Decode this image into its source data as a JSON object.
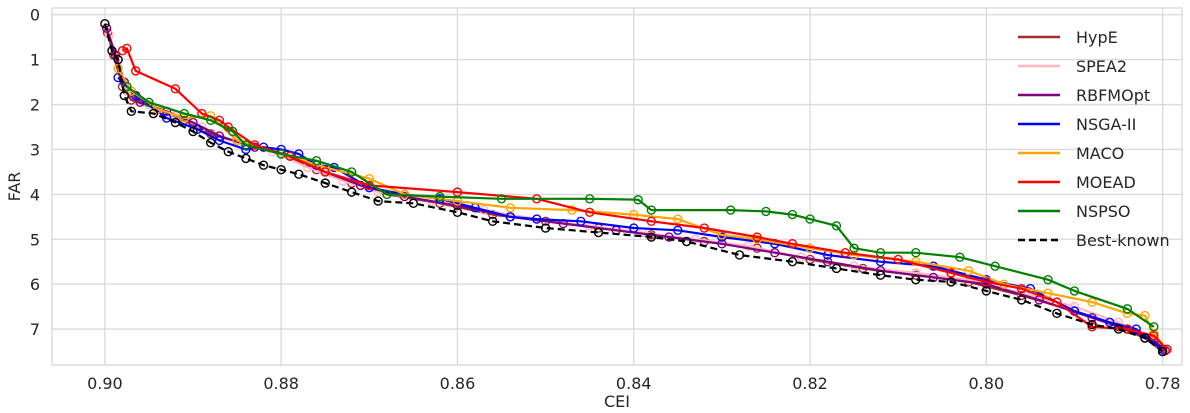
{
  "chart_data": {
    "type": "line",
    "xlabel": "CEI",
    "ylabel": "FAR",
    "xlim": [
      0.906,
      0.7778
    ],
    "ylim": [
      7.8,
      -0.15
    ],
    "x_inverted": true,
    "y_inverted": true,
    "xticks": [
      0.9,
      0.88,
      0.86,
      0.84,
      0.82,
      0.8,
      0.78
    ],
    "xtick_labels": [
      "0.90",
      "0.88",
      "0.86",
      "0.84",
      "0.82",
      "0.80",
      "0.78"
    ],
    "yticks": [
      0,
      1,
      2,
      3,
      4,
      5,
      6,
      7
    ],
    "ytick_labels": [
      "0",
      "1",
      "2",
      "3",
      "4",
      "5",
      "6",
      "7"
    ],
    "grid": true,
    "legend_position": "top-right",
    "series": [
      {
        "name": "HypE",
        "color": "#a52a2a",
        "style": "solid",
        "markers": true,
        "points": [
          [
            0.8997,
            0.4
          ],
          [
            0.899,
            0.9
          ],
          [
            0.898,
            1.6
          ],
          [
            0.897,
            1.9
          ],
          [
            0.894,
            2.1
          ],
          [
            0.891,
            2.35
          ],
          [
            0.888,
            2.65
          ],
          [
            0.884,
            2.9
          ],
          [
            0.88,
            3.1
          ],
          [
            0.876,
            3.45
          ],
          [
            0.872,
            3.75
          ],
          [
            0.868,
            4.0
          ],
          [
            0.862,
            4.2
          ],
          [
            0.856,
            4.45
          ],
          [
            0.85,
            4.6
          ],
          [
            0.844,
            4.75
          ],
          [
            0.838,
            4.9
          ],
          [
            0.832,
            5.05
          ],
          [
            0.826,
            5.2
          ],
          [
            0.82,
            5.45
          ],
          [
            0.814,
            5.65
          ],
          [
            0.808,
            5.8
          ],
          [
            0.802,
            5.95
          ],
          [
            0.796,
            6.25
          ],
          [
            0.79,
            6.6
          ],
          [
            0.785,
            6.95
          ],
          [
            0.782,
            7.2
          ],
          [
            0.78,
            7.5
          ]
        ]
      },
      {
        "name": "SPEA2",
        "color": "#ffb6c1",
        "style": "solid",
        "markers": true,
        "points": [
          [
            0.8995,
            0.45
          ],
          [
            0.8985,
            1.0
          ],
          [
            0.8975,
            1.7
          ],
          [
            0.895,
            2.0
          ],
          [
            0.892,
            2.25
          ],
          [
            0.889,
            2.5
          ],
          [
            0.885,
            2.85
          ],
          [
            0.881,
            3.05
          ],
          [
            0.877,
            3.4
          ],
          [
            0.873,
            3.7
          ],
          [
            0.869,
            3.95
          ],
          [
            0.863,
            4.15
          ],
          [
            0.857,
            4.35
          ],
          [
            0.851,
            4.55
          ],
          [
            0.845,
            4.7
          ],
          [
            0.839,
            4.85
          ],
          [
            0.833,
            5.0
          ],
          [
            0.827,
            5.15
          ],
          [
            0.821,
            5.4
          ],
          [
            0.815,
            5.6
          ],
          [
            0.808,
            5.75
          ],
          [
            0.802,
            5.9
          ],
          [
            0.796,
            6.2
          ],
          [
            0.79,
            6.5
          ],
          [
            0.785,
            6.85
          ],
          [
            0.781,
            7.2
          ],
          [
            0.7795,
            7.45
          ]
        ]
      },
      {
        "name": "RBFMOpt",
        "color": "#800080",
        "style": "solid",
        "markers": true,
        "points": [
          [
            0.8998,
            0.3
          ],
          [
            0.8988,
            0.9
          ],
          [
            0.8978,
            1.5
          ],
          [
            0.896,
            1.95
          ],
          [
            0.893,
            2.15
          ],
          [
            0.89,
            2.4
          ],
          [
            0.887,
            2.7
          ],
          [
            0.883,
            2.95
          ],
          [
            0.879,
            3.15
          ],
          [
            0.875,
            3.5
          ],
          [
            0.871,
            3.8
          ],
          [
            0.866,
            4.05
          ],
          [
            0.86,
            4.25
          ],
          [
            0.854,
            4.5
          ],
          [
            0.848,
            4.65
          ],
          [
            0.842,
            4.8
          ],
          [
            0.836,
            4.95
          ],
          [
            0.83,
            5.1
          ],
          [
            0.824,
            5.3
          ],
          [
            0.818,
            5.5
          ],
          [
            0.812,
            5.7
          ],
          [
            0.806,
            5.85
          ],
          [
            0.8,
            6.0
          ],
          [
            0.794,
            6.35
          ],
          [
            0.788,
            6.75
          ],
          [
            0.784,
            7.0
          ],
          [
            0.781,
            7.25
          ],
          [
            0.7797,
            7.48
          ]
        ]
      },
      {
        "name": "NSGA-II",
        "color": "#0000ff",
        "style": "solid",
        "markers": true,
        "points": [
          [
            0.8985,
            1.4
          ],
          [
            0.8965,
            1.8
          ],
          [
            0.893,
            2.3
          ],
          [
            0.8895,
            2.55
          ],
          [
            0.887,
            2.8
          ],
          [
            0.884,
            3.0
          ],
          [
            0.882,
            2.95
          ],
          [
            0.88,
            3.0
          ],
          [
            0.878,
            3.1
          ],
          [
            0.876,
            3.35
          ],
          [
            0.874,
            3.4
          ],
          [
            0.87,
            3.85
          ],
          [
            0.866,
            4.0
          ],
          [
            0.862,
            4.1
          ],
          [
            0.858,
            4.3
          ],
          [
            0.854,
            4.5
          ],
          [
            0.851,
            4.55
          ],
          [
            0.846,
            4.6
          ],
          [
            0.84,
            4.75
          ],
          [
            0.835,
            4.8
          ],
          [
            0.83,
            4.95
          ],
          [
            0.824,
            5.1
          ],
          [
            0.818,
            5.35
          ],
          [
            0.812,
            5.5
          ],
          [
            0.806,
            5.6
          ],
          [
            0.8,
            5.9
          ],
          [
            0.795,
            6.1
          ],
          [
            0.79,
            6.6
          ],
          [
            0.786,
            6.85
          ],
          [
            0.783,
            7.0
          ],
          [
            0.78,
            7.45
          ]
        ]
      },
      {
        "name": "MACO",
        "color": "#ffa500",
        "style": "solid",
        "markers": true,
        "points": [
          [
            0.8985,
            1.2
          ],
          [
            0.897,
            1.7
          ],
          [
            0.894,
            2.1
          ],
          [
            0.891,
            2.3
          ],
          [
            0.888,
            2.25
          ],
          [
            0.885,
            2.8
          ],
          [
            0.88,
            3.1
          ],
          [
            0.875,
            3.4
          ],
          [
            0.87,
            3.65
          ],
          [
            0.866,
            4.0
          ],
          [
            0.86,
            4.15
          ],
          [
            0.854,
            4.3
          ],
          [
            0.847,
            4.35
          ],
          [
            0.84,
            4.45
          ],
          [
            0.835,
            4.55
          ],
          [
            0.83,
            4.9
          ],
          [
            0.826,
            5.0
          ],
          [
            0.82,
            5.2
          ],
          [
            0.815,
            5.35
          ],
          [
            0.808,
            5.5
          ],
          [
            0.802,
            5.7
          ],
          [
            0.798,
            6.0
          ],
          [
            0.793,
            6.2
          ],
          [
            0.788,
            6.4
          ],
          [
            0.784,
            6.65
          ],
          [
            0.782,
            6.7
          ],
          [
            0.781,
            7.1
          ],
          [
            0.7795,
            7.45
          ]
        ]
      },
      {
        "name": "MOEAD",
        "color": "#ff0000",
        "style": "solid",
        "markers": true,
        "points": [
          [
            0.898,
            0.8
          ],
          [
            0.8975,
            0.75
          ],
          [
            0.8965,
            1.25
          ],
          [
            0.892,
            1.65
          ],
          [
            0.889,
            2.2
          ],
          [
            0.887,
            2.35
          ],
          [
            0.886,
            2.5
          ],
          [
            0.883,
            2.9
          ],
          [
            0.879,
            3.15
          ],
          [
            0.875,
            3.5
          ],
          [
            0.87,
            3.8
          ],
          [
            0.86,
            3.95
          ],
          [
            0.851,
            4.1
          ],
          [
            0.845,
            4.4
          ],
          [
            0.838,
            4.6
          ],
          [
            0.832,
            4.75
          ],
          [
            0.826,
            4.95
          ],
          [
            0.822,
            5.1
          ],
          [
            0.816,
            5.3
          ],
          [
            0.81,
            5.45
          ],
          [
            0.804,
            5.75
          ],
          [
            0.8,
            5.95
          ],
          [
            0.796,
            6.1
          ],
          [
            0.792,
            6.4
          ],
          [
            0.788,
            6.95
          ],
          [
            0.784,
            7.0
          ],
          [
            0.781,
            7.15
          ],
          [
            0.7795,
            7.45
          ]
        ]
      },
      {
        "name": "NSPSO",
        "color": "#008000",
        "style": "solid",
        "markers": true,
        "points": [
          [
            0.8975,
            1.6
          ],
          [
            0.895,
            1.95
          ],
          [
            0.891,
            2.2
          ],
          [
            0.888,
            2.35
          ],
          [
            0.8855,
            2.6
          ],
          [
            0.884,
            2.9
          ],
          [
            0.88,
            3.1
          ],
          [
            0.876,
            3.25
          ],
          [
            0.872,
            3.5
          ],
          [
            0.868,
            4.0
          ],
          [
            0.862,
            4.05
          ],
          [
            0.855,
            4.1
          ],
          [
            0.845,
            4.1
          ],
          [
            0.8395,
            4.12
          ],
          [
            0.838,
            4.35
          ],
          [
            0.829,
            4.35
          ],
          [
            0.825,
            4.38
          ],
          [
            0.822,
            4.45
          ],
          [
            0.82,
            4.55
          ],
          [
            0.817,
            4.7
          ],
          [
            0.815,
            5.2
          ],
          [
            0.812,
            5.3
          ],
          [
            0.808,
            5.3
          ],
          [
            0.803,
            5.4
          ],
          [
            0.799,
            5.6
          ],
          [
            0.793,
            5.9
          ],
          [
            0.79,
            6.15
          ],
          [
            0.784,
            6.55
          ],
          [
            0.781,
            6.95
          ]
        ]
      },
      {
        "name": "Best-known",
        "color": "#000000",
        "style": "dashed",
        "markers": true,
        "points": [
          [
            0.9,
            0.2
          ],
          [
            0.8992,
            0.8
          ],
          [
            0.8985,
            1.0
          ],
          [
            0.8978,
            1.8
          ],
          [
            0.897,
            2.15
          ],
          [
            0.8945,
            2.2
          ],
          [
            0.892,
            2.4
          ],
          [
            0.89,
            2.6
          ],
          [
            0.888,
            2.85
          ],
          [
            0.886,
            3.05
          ],
          [
            0.884,
            3.2
          ],
          [
            0.882,
            3.35
          ],
          [
            0.88,
            3.45
          ],
          [
            0.878,
            3.55
          ],
          [
            0.875,
            3.75
          ],
          [
            0.872,
            3.95
          ],
          [
            0.869,
            4.15
          ],
          [
            0.865,
            4.2
          ],
          [
            0.86,
            4.4
          ],
          [
            0.856,
            4.6
          ],
          [
            0.85,
            4.75
          ],
          [
            0.844,
            4.85
          ],
          [
            0.838,
            4.95
          ],
          [
            0.834,
            5.05
          ],
          [
            0.828,
            5.35
          ],
          [
            0.822,
            5.5
          ],
          [
            0.817,
            5.65
          ],
          [
            0.812,
            5.8
          ],
          [
            0.808,
            5.9
          ],
          [
            0.804,
            5.95
          ],
          [
            0.8,
            6.15
          ],
          [
            0.796,
            6.35
          ],
          [
            0.792,
            6.65
          ],
          [
            0.788,
            6.9
          ],
          [
            0.785,
            7.0
          ],
          [
            0.782,
            7.2
          ],
          [
            0.78,
            7.5
          ]
        ]
      }
    ]
  }
}
